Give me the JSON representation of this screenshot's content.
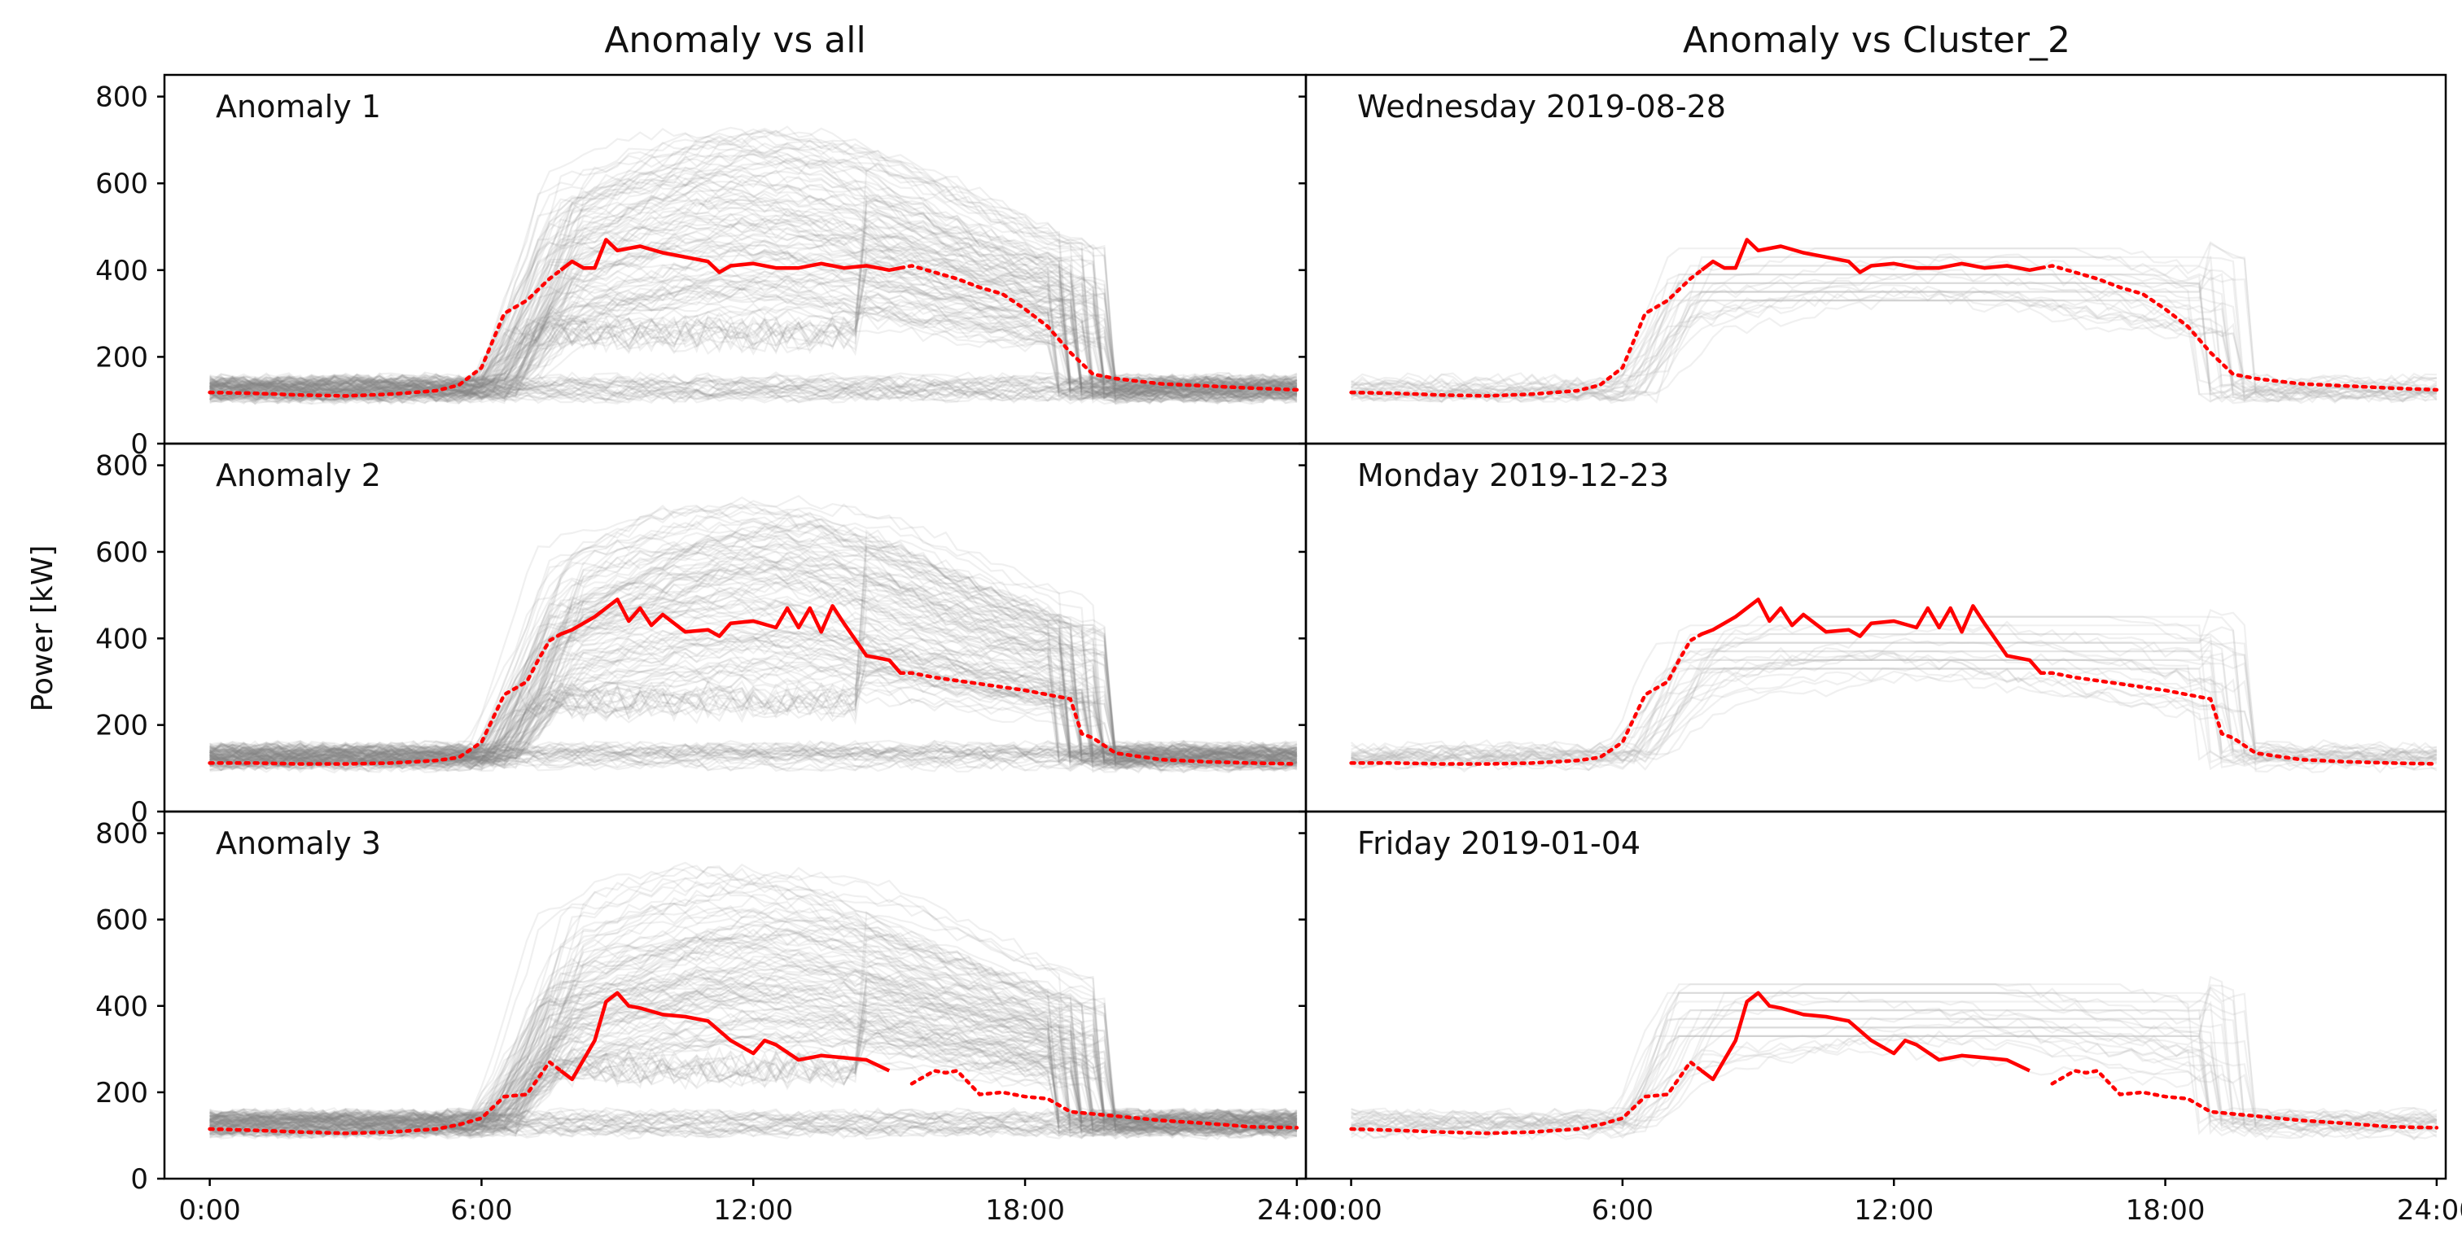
{
  "column_titles": [
    "Anomaly vs all",
    "Anomaly vs Cluster_2"
  ],
  "ylabel": "Power [kW]",
  "colors": {
    "anomaly": "#ff0000",
    "background_all": "#808080",
    "background_cluster": "#b4b4b4",
    "axes": "#000000"
  },
  "chart_data": {
    "type": "line",
    "layout": "3x2 grid, shared axes",
    "xticks": [
      "0:00",
      "6:00",
      "12:00",
      "18:00",
      "24:00"
    ],
    "yticks": [
      "0",
      "200",
      "400",
      "600",
      "800"
    ],
    "xlim_hours": [
      -1,
      24.2
    ],
    "ylim": [
      0,
      850
    ],
    "grid": false,
    "legend": "none",
    "notes": "Gray lines = many individual daily load profiles (all days in left column, Cluster_2 days in right column). Red line = anomalous day; solid where flagged, dotted elsewhere.",
    "panels": [
      {
        "label": "Anomaly 1",
        "right_label": "Wednesday 2019-08-28",
        "anomaly": {
          "x_hours": [
            0,
            1,
            2,
            3,
            4,
            5,
            5.5,
            6,
            6.5,
            7,
            7.5,
            7.75,
            8,
            8.25,
            8.5,
            8.75,
            9,
            9.5,
            10,
            10.5,
            11,
            11.25,
            11.5,
            12,
            12.5,
            13,
            13.5,
            14,
            14.5,
            15,
            15.25,
            15.5,
            16,
            16.5,
            17,
            17.5,
            18,
            18.5,
            19,
            19.5,
            20,
            21,
            22,
            23,
            24
          ],
          "power_kw": [
            118,
            116,
            112,
            110,
            114,
            122,
            135,
            175,
            300,
            330,
            380,
            400,
            420,
            405,
            405,
            470,
            445,
            455,
            440,
            430,
            420,
            395,
            410,
            415,
            405,
            405,
            415,
            405,
            410,
            400,
            405,
            410,
            395,
            380,
            360,
            345,
            310,
            270,
            210,
            160,
            150,
            138,
            133,
            128,
            124
          ],
          "solid_hours": [
            7.75,
            15.25
          ]
        }
      },
      {
        "label": "Anomaly 2",
        "right_label": "Monday 2019-12-23",
        "anomaly": {
          "x_hours": [
            0,
            1,
            2,
            3,
            4,
            5,
            5.5,
            6,
            6.5,
            7,
            7.25,
            7.5,
            7.75,
            8,
            8.5,
            9,
            9.25,
            9.5,
            9.75,
            10,
            10.5,
            11,
            11.25,
            11.5,
            12,
            12.5,
            12.75,
            13,
            13.25,
            13.5,
            13.75,
            14,
            14.5,
            15,
            15.25,
            15.5,
            16,
            17,
            18,
            18.5,
            19,
            19.25,
            19.5,
            20,
            21,
            22,
            23,
            24
          ],
          "power_kw": [
            112,
            112,
            110,
            110,
            112,
            118,
            125,
            160,
            270,
            300,
            350,
            395,
            410,
            420,
            450,
            490,
            440,
            470,
            430,
            455,
            415,
            420,
            405,
            435,
            440,
            425,
            470,
            425,
            470,
            415,
            475,
            435,
            360,
            350,
            320,
            320,
            310,
            295,
            280,
            270,
            260,
            180,
            170,
            135,
            120,
            115,
            112,
            110
          ],
          "solid_hours": [
            7.75,
            15.25
          ]
        }
      },
      {
        "label": "Anomaly 3",
        "right_label": "Friday 2019-01-04",
        "anomaly": {
          "x_hours": [
            0,
            1,
            2,
            3,
            4,
            5,
            5.5,
            6,
            6.5,
            7,
            7.5,
            7.75,
            8,
            8.5,
            8.75,
            9,
            9.25,
            9.5,
            10,
            10.5,
            11,
            11.5,
            12,
            12.25,
            12.5,
            13,
            13.5,
            14,
            14.5,
            15,
            15.5,
            16,
            16.25,
            16.5,
            17,
            17.5,
            18,
            18.5,
            19,
            20,
            21,
            22,
            23,
            24
          ],
          "power_kw": [
            115,
            112,
            108,
            105,
            108,
            115,
            125,
            140,
            190,
            195,
            270,
            250,
            230,
            320,
            410,
            430,
            400,
            395,
            380,
            375,
            365,
            320,
            290,
            320,
            310,
            275,
            285,
            280,
            275,
            250,
            220,
            250,
            245,
            250,
            195,
            200,
            190,
            185,
            155,
            145,
            135,
            128,
            120,
            118
          ],
          "solid_hours": [
            7.75,
            15.25
          ]
        }
      }
    ]
  }
}
